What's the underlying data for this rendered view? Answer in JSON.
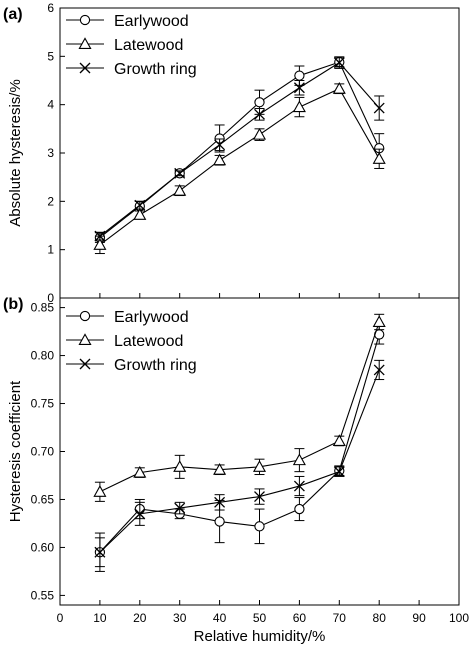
{
  "chart_data": [
    {
      "type": "line",
      "panel_label": "(a)",
      "ylabel": "Absolute hysteresis/%",
      "xlabel": "",
      "xlim": [
        0,
        100
      ],
      "ylim": [
        0,
        6
      ],
      "x_ticks": [
        0,
        10,
        20,
        30,
        40,
        50,
        60,
        70,
        80,
        90,
        100
      ],
      "x_tick_labels": [
        "0",
        "10",
        "20",
        "30",
        "40",
        "50",
        "60",
        "70",
        "80",
        "90",
        "100"
      ],
      "y_ticks": [
        0,
        1,
        2,
        3,
        4,
        5,
        6
      ],
      "y_tick_labels": [
        "0",
        "1",
        "2",
        "3",
        "4",
        "5",
        "6"
      ],
      "legend_position": "top-left",
      "x": [
        10,
        20,
        30,
        40,
        50,
        60,
        70,
        80
      ],
      "series": [
        {
          "name": "Earlywood",
          "marker": "circle",
          "values": [
            1.25,
            1.9,
            2.58,
            3.3,
            4.05,
            4.6,
            4.88,
            3.1
          ],
          "errors": [
            0.1,
            0.1,
            0.07,
            0.28,
            0.25,
            0.2,
            0.1,
            0.3
          ]
        },
        {
          "name": "Latewood",
          "marker": "triangle",
          "values": [
            1.1,
            1.72,
            2.22,
            2.85,
            3.38,
            3.95,
            4.33,
            2.88
          ],
          "errors": [
            0.18,
            0.08,
            0.1,
            0.1,
            0.12,
            0.2,
            0.1,
            0.2
          ]
        },
        {
          "name": "Growth ring",
          "marker": "x",
          "values": [
            1.28,
            1.92,
            2.58,
            3.17,
            3.8,
            4.35,
            4.87,
            3.93
          ],
          "errors": [
            0.08,
            0.08,
            0.05,
            0.12,
            0.12,
            0.15,
            0.12,
            0.25
          ]
        }
      ]
    },
    {
      "type": "line",
      "panel_label": "(b)",
      "ylabel": "Hysteresis coefficient",
      "xlabel": "Relative humidity/%",
      "xlim": [
        0,
        100
      ],
      "ylim": [
        0.54,
        0.86
      ],
      "x_ticks": [
        0,
        10,
        20,
        30,
        40,
        50,
        60,
        70,
        80,
        90,
        100
      ],
      "x_tick_labels": [
        "0",
        "10",
        "20",
        "30",
        "40",
        "50",
        "60",
        "70",
        "80",
        "90",
        "100"
      ],
      "y_ticks": [
        0.55,
        0.6,
        0.65,
        0.7,
        0.75,
        0.8,
        0.85
      ],
      "y_tick_labels": [
        "0.55",
        "0.60",
        "0.65",
        "0.70",
        "0.75",
        "0.80",
        "0.85"
      ],
      "legend_position": "top-left",
      "x": [
        10,
        20,
        30,
        40,
        50,
        60,
        70,
        80
      ],
      "series": [
        {
          "name": "Earlywood",
          "marker": "circle",
          "values": [
            0.595,
            0.64,
            0.635,
            0.627,
            0.622,
            0.64,
            0.68,
            0.822
          ],
          "errors": [
            0.02,
            0.01,
            0.005,
            0.022,
            0.018,
            0.012,
            0.005,
            0.01
          ]
        },
        {
          "name": "Latewood",
          "marker": "triangle",
          "values": [
            0.658,
            0.678,
            0.684,
            0.681,
            0.684,
            0.691,
            0.711,
            0.835
          ],
          "errors": [
            0.01,
            0.005,
            0.012,
            0.005,
            0.008,
            0.012,
            0.005,
            0.008
          ]
        },
        {
          "name": "Growth ring",
          "marker": "x",
          "values": [
            0.595,
            0.635,
            0.641,
            0.647,
            0.653,
            0.664,
            0.679,
            0.785
          ],
          "errors": [
            0.015,
            0.012,
            0.006,
            0.008,
            0.008,
            0.01,
            0.005,
            0.01
          ]
        }
      ]
    }
  ]
}
